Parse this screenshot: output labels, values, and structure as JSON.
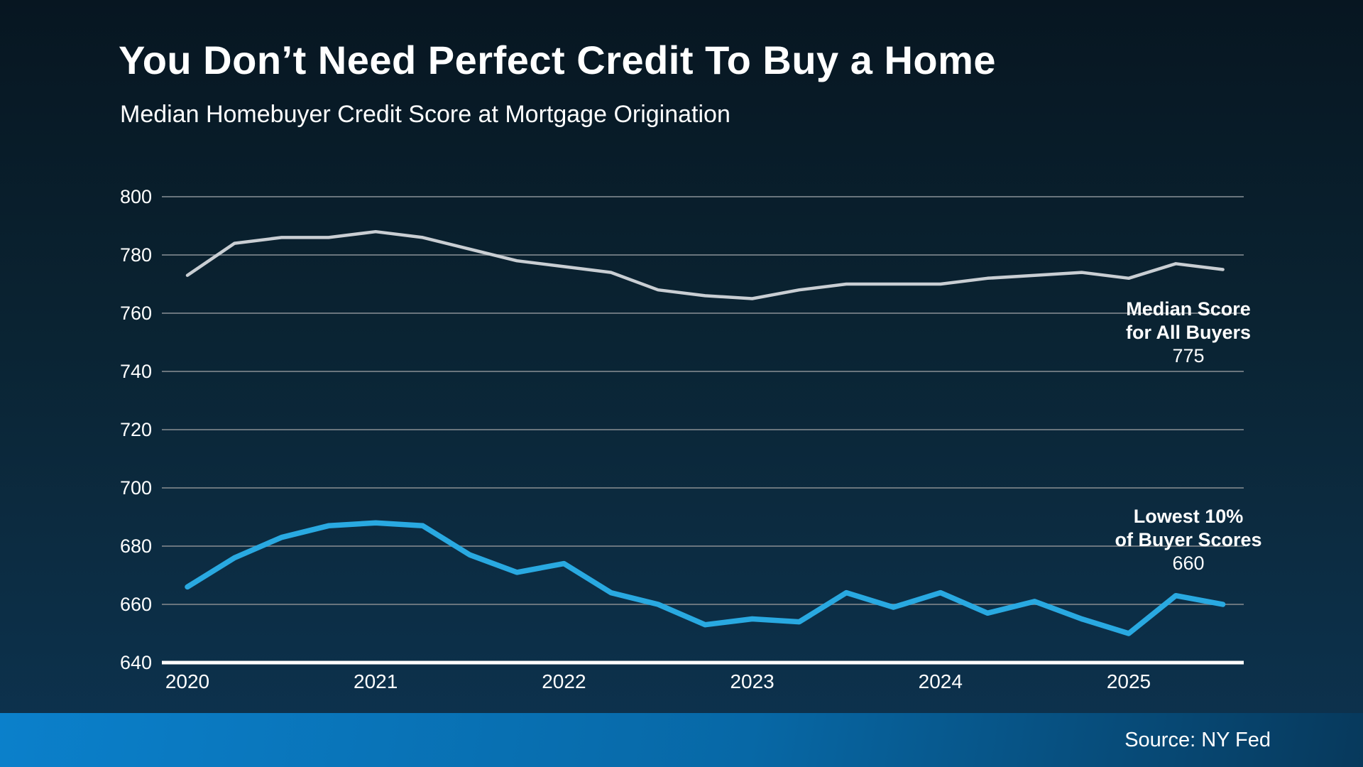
{
  "header": {
    "title": "You Don’t Need Perfect Credit To Buy a Home",
    "subtitle": "Median Homebuyer Credit Score at Mortgage Origination"
  },
  "footer": {
    "source_label": "Source: NY Fed"
  },
  "colors": {
    "background_top": "#071621",
    "background_bottom": "#0d3350",
    "gridline": "#6a757d",
    "axis_line": "#ffffff",
    "median_line": "#c9ced3",
    "lowest_line": "#29a9e1",
    "footer_bar_left": "#0b80cb",
    "footer_bar_right": "#07395c",
    "text": "#ffffff"
  },
  "chart_data": {
    "type": "line",
    "title": "Median Homebuyer Credit Score at Mortgage Origination",
    "xlabel": "",
    "ylabel": "",
    "x": [
      "2020 Q1",
      "2020 Q2",
      "2020 Q3",
      "2020 Q4",
      "2021 Q1",
      "2021 Q2",
      "2021 Q3",
      "2021 Q4",
      "2022 Q1",
      "2022 Q2",
      "2022 Q3",
      "2022 Q4",
      "2023 Q1",
      "2023 Q2",
      "2023 Q3",
      "2023 Q4",
      "2024 Q1",
      "2024 Q2",
      "2024 Q3",
      "2024 Q4",
      "2025 Q1",
      "2025 Q2",
      "2025 Q3"
    ],
    "x_tick_labels": [
      "2020",
      "2021",
      "2022",
      "2023",
      "2024",
      "2025"
    ],
    "y_ticks": [
      640,
      660,
      680,
      700,
      720,
      740,
      760,
      780,
      800
    ],
    "ylim": [
      640,
      800
    ],
    "grid": true,
    "legend_position": "end-of-line labels, right side",
    "series": [
      {
        "name": "Median Score for All Buyers",
        "color": "#c9ced3",
        "values": [
          773,
          784,
          786,
          786,
          788,
          786,
          782,
          778,
          776,
          774,
          768,
          766,
          765,
          768,
          770,
          770,
          770,
          772,
          773,
          774,
          772,
          777,
          775
        ],
        "end_label": {
          "line1": "Median Score",
          "line2": "for All Buyers",
          "value": "775"
        }
      },
      {
        "name": "Lowest 10% of Buyer Scores",
        "color": "#29a9e1",
        "values": [
          666,
          676,
          683,
          687,
          688,
          687,
          677,
          671,
          674,
          664,
          660,
          653,
          655,
          654,
          664,
          659,
          664,
          657,
          661,
          655,
          650,
          663,
          660
        ],
        "end_label": {
          "line1": "Lowest 10%",
          "line2": "of Buyer Scores",
          "value": "660"
        }
      }
    ]
  }
}
